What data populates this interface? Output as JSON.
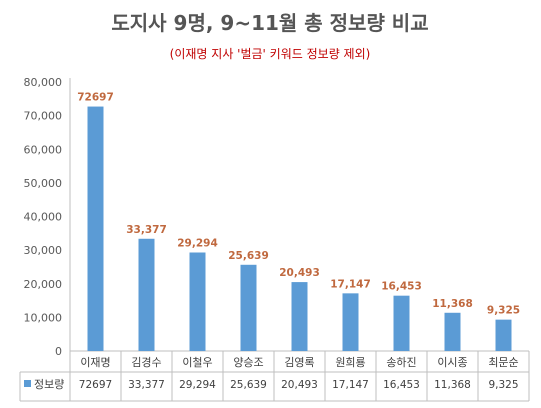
{
  "chart_data": {
    "type": "bar",
    "title": "도지사 9명, 9~11월 총 정보량 비교",
    "subtitle": "(이재명 지사 '벌금' 키워드 정보량 제외)",
    "categories": [
      "이재명",
      "김경수",
      "이철우",
      "양승조",
      "김영록",
      "원희룡",
      "송하진",
      "이시종",
      "최문순"
    ],
    "series": [
      {
        "name": "정보량",
        "values": [
          72697,
          33377,
          29294,
          25639,
          20493,
          17147,
          16453,
          11368,
          9325
        ],
        "labels": [
          "72697",
          "33,377",
          "29,294",
          "25,639",
          "20,493",
          "17,147",
          "16,453",
          "11,368",
          "9,325"
        ]
      }
    ],
    "ylim": [
      0,
      80000
    ],
    "yticks": [
      0,
      10000,
      20000,
      30000,
      40000,
      50000,
      60000,
      70000,
      80000
    ],
    "ytick_labels": [
      "0",
      "10,000",
      "20,000",
      "30,000",
      "40,000",
      "50,000",
      "60,000",
      "70,000",
      "80,000"
    ],
    "grid": false,
    "legend": "data-table",
    "colors": {
      "bar": "#5b9bd5",
      "value_label": "#c0693f",
      "title": "#555555",
      "subtitle": "#c00000",
      "axis": "#bfbfbf"
    }
  }
}
